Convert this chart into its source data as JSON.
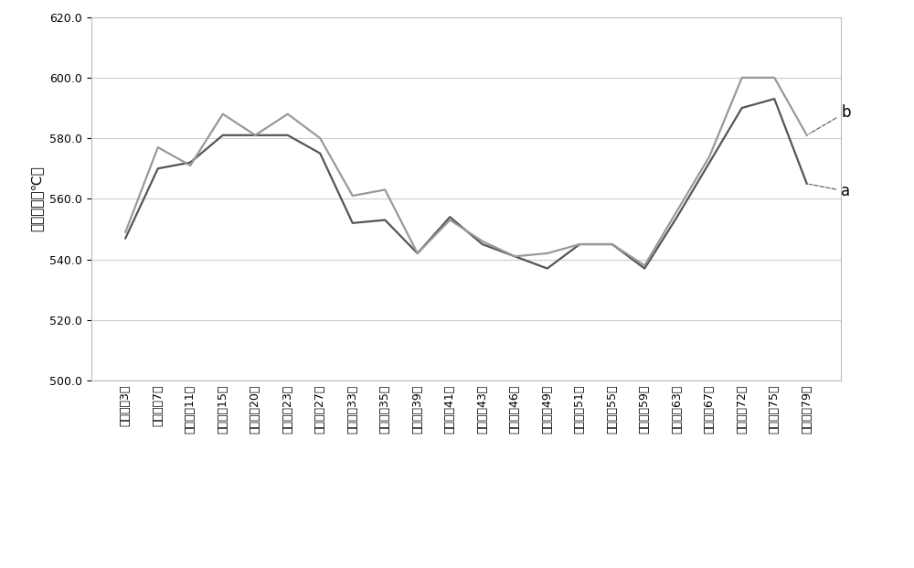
{
  "x_labels": [
    "高再出口3片",
    "高再出口7片",
    "高再出口11片",
    "高再出口15片",
    "高再出口20片",
    "高再出口23片",
    "高再出口27片",
    "高再出口33片",
    "高再出口35片",
    "高再出口39片",
    "高再出口41片",
    "高再出口43片",
    "高再出口46片",
    "高再出口49片",
    "高再出口51片",
    "高再出口55片",
    "高再出口59片",
    "高再出口63片",
    "高再出口67片",
    "高再出口72片",
    "高再出口75片",
    "高再出口79片"
  ],
  "series_a": [
    547,
    570,
    572,
    581,
    581,
    581,
    575,
    552,
    553,
    542,
    554,
    545,
    541,
    537,
    545,
    545,
    537,
    554,
    572,
    590,
    593,
    565
  ],
  "series_b": [
    549,
    577,
    571,
    588,
    581,
    588,
    580,
    561,
    563,
    542,
    553,
    546,
    541,
    542,
    545,
    545,
    538,
    556,
    574,
    600,
    600,
    581
  ],
  "ylabel": "金属壁温（℃）",
  "ylim": [
    500.0,
    620.0
  ],
  "yticks": [
    500.0,
    520.0,
    540.0,
    560.0,
    580.0,
    600.0,
    620.0
  ],
  "line_color_a": "#555555",
  "line_color_b": "#999999",
  "legend_a": "a",
  "legend_b": "b",
  "bg_color": "#ffffff",
  "plot_bg_color": "#ffffff",
  "grid_color": "#cccccc",
  "annotation_fontsize": 12,
  "axis_fontsize": 11,
  "tick_fontsize": 9,
  "linewidth": 1.6
}
